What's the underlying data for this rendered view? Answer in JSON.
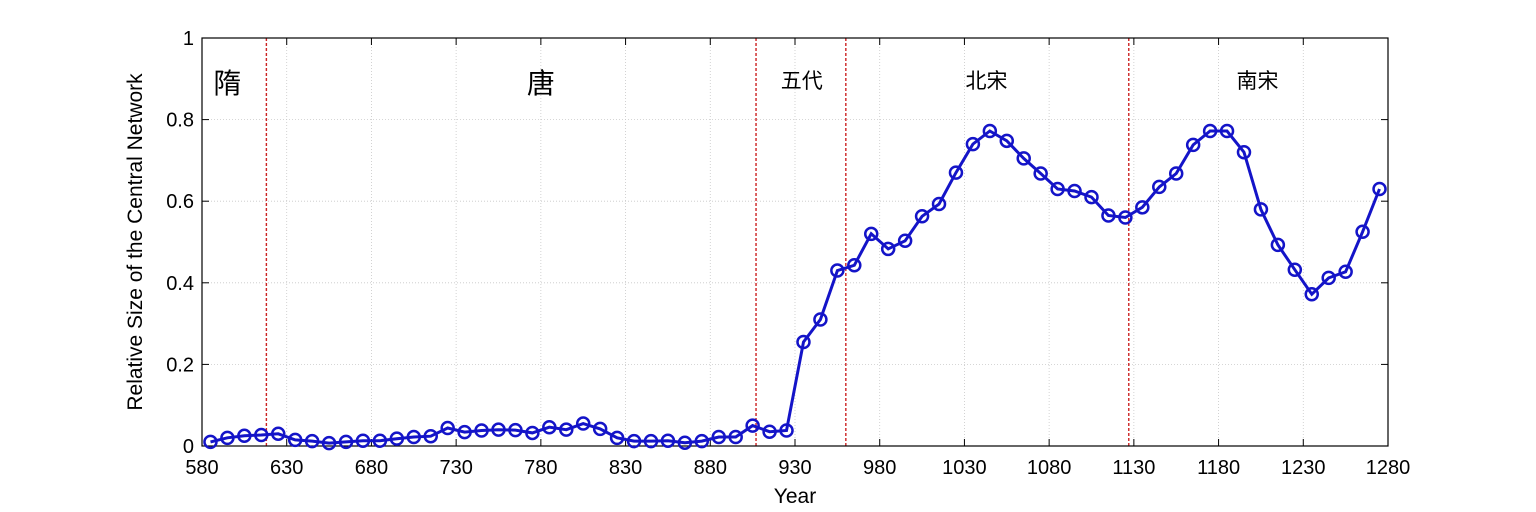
{
  "chart_data": {
    "type": "line",
    "xlabel": "Year",
    "ylabel": "Relative Size of the Central Network",
    "xlim": [
      580,
      1280
    ],
    "ylim": [
      0,
      1
    ],
    "xticks": [
      "580",
      "630",
      "680",
      "730",
      "780",
      "830",
      "880",
      "930",
      "980",
      "1030",
      "1080",
      "1130",
      "1180",
      "1230",
      "1280"
    ],
    "yticks": [
      "0",
      "0.2",
      "0.4",
      "0.6",
      "0.8",
      "1"
    ],
    "grid": true,
    "line_color": "#1414c8",
    "divider_color": "#cc2222",
    "dividers": [
      618,
      907,
      960,
      1127
    ],
    "eras": [
      {
        "label": "隋",
        "x": 595
      },
      {
        "label": "唐",
        "x": 780
      },
      {
        "label": "五代",
        "x": 934
      },
      {
        "label": "北宋",
        "x": 1043
      },
      {
        "label": "南宋",
        "x": 1203
      }
    ],
    "series": [
      {
        "x": [
          585,
          595,
          605,
          615,
          625,
          635,
          645,
          655,
          665,
          675,
          685,
          695,
          705,
          715,
          725,
          735,
          745,
          755,
          765,
          775,
          785,
          795,
          805,
          815,
          825,
          835,
          845,
          855,
          865,
          875,
          885,
          895,
          905,
          915,
          925,
          935,
          945,
          955,
          965,
          975,
          985,
          995,
          1005,
          1015,
          1025,
          1035,
          1045,
          1055,
          1065,
          1075,
          1085,
          1095,
          1105,
          1115,
          1125,
          1135,
          1145,
          1155,
          1165,
          1175,
          1185,
          1195,
          1205,
          1215,
          1225,
          1235,
          1245,
          1255,
          1265,
          1275
        ],
        "y": [
          0.01,
          0.02,
          0.025,
          0.027,
          0.03,
          0.015,
          0.012,
          0.007,
          0.01,
          0.013,
          0.013,
          0.018,
          0.022,
          0.024,
          0.044,
          0.034,
          0.038,
          0.04,
          0.039,
          0.032,
          0.046,
          0.04,
          0.055,
          0.042,
          0.02,
          0.012,
          0.012,
          0.013,
          0.008,
          0.012,
          0.022,
          0.022,
          0.05,
          0.035,
          0.038,
          0.255,
          0.31,
          0.43,
          0.443,
          0.52,
          0.483,
          0.503,
          0.563,
          0.593,
          0.67,
          0.74,
          0.772,
          0.748,
          0.705,
          0.668,
          0.63,
          0.625,
          0.61,
          0.565,
          0.56,
          0.585,
          0.635,
          0.668,
          0.738,
          0.772,
          0.772,
          0.72,
          0.58,
          0.493,
          0.432,
          0.372,
          0.412,
          0.427,
          0.525,
          0.63
        ]
      }
    ]
  }
}
